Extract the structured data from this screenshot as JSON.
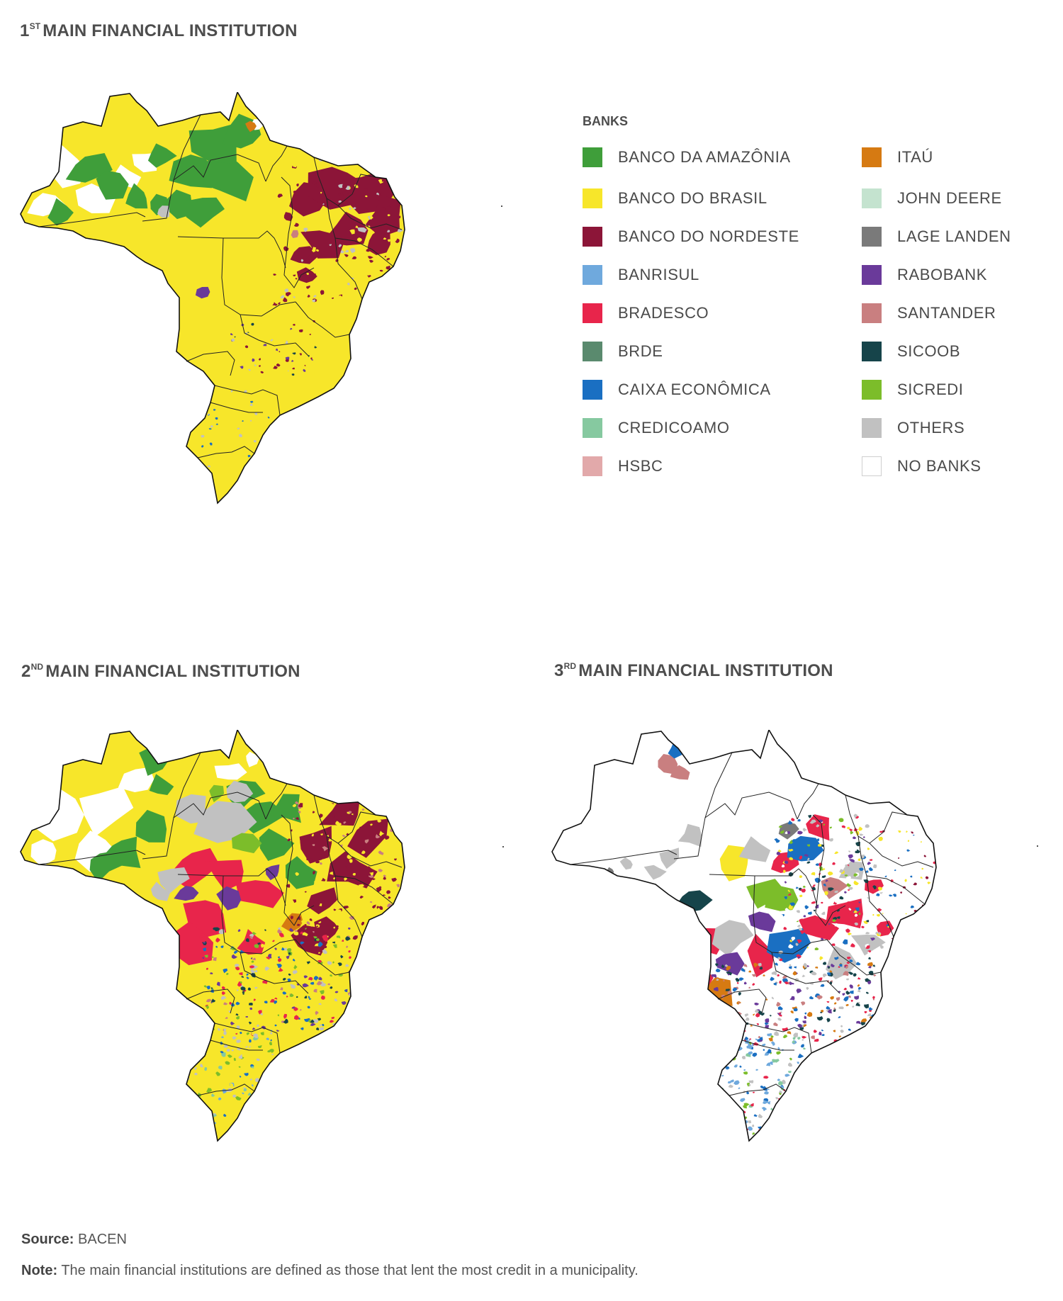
{
  "panels": [
    {
      "ordinal": "1",
      "suffix": "ST",
      "title": "MAIN FINANCIAL INSTITUTION"
    },
    {
      "ordinal": "2",
      "suffix": "ND",
      "title": "MAIN FINANCIAL INSTITUTION"
    },
    {
      "ordinal": "3",
      "suffix": "RD",
      "title": "MAIN FINANCIAL INSTITUTION"
    }
  ],
  "legend": {
    "title": "BANKS",
    "items": [
      {
        "label": "BANCO DA AMAZÔNIA",
        "color": "#3f9e3a"
      },
      {
        "label": "BANCO DO BRASIL",
        "color": "#f7e62a"
      },
      {
        "label": "BANCO DO NORDESTE",
        "color": "#8c1538"
      },
      {
        "label": "BANRISUL",
        "color": "#6fa9dd"
      },
      {
        "label": "BRADESCO",
        "color": "#e8254b"
      },
      {
        "label": "BRDE",
        "color": "#5a8a6e"
      },
      {
        "label": "CAIXA ECONÔMICA",
        "color": "#1a6fc2"
      },
      {
        "label": "CREDICOAMO",
        "color": "#86c9a0"
      },
      {
        "label": "HSBC",
        "color": "#e2a9aa"
      },
      {
        "label": "ITAÚ",
        "color": "#d67a12"
      },
      {
        "label": "JOHN DEERE",
        "color": "#c4e3cf"
      },
      {
        "label": "LAGE LANDEN",
        "color": "#7a7a7a"
      },
      {
        "label": "RABOBANK",
        "color": "#6a3a9a"
      },
      {
        "label": "SANTANDER",
        "color": "#c97f80"
      },
      {
        "label": "SICOOB",
        "color": "#16444a"
      },
      {
        "label": "SICREDI",
        "color": "#7cbd2a"
      },
      {
        "label": "OTHERS",
        "color": "#c1c1c1"
      },
      {
        "label": "NO BANKS",
        "color": "#ffffff"
      }
    ]
  },
  "footer": {
    "source_label": "Source:",
    "source_text": "BACEN",
    "note_label": "Note:",
    "note_text": "The main financial institutions are defined as those that lent the most credit in a municipality."
  }
}
